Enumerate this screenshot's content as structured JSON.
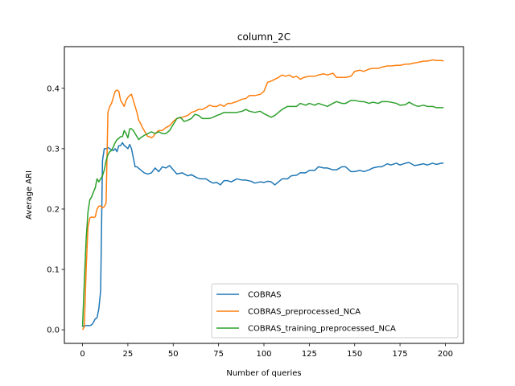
{
  "chart_data": {
    "type": "line",
    "title": "column_2C",
    "xlabel": "Number of queries",
    "ylabel": "Average ARI",
    "xlim": [
      -10,
      210
    ],
    "ylim": [
      -0.0225,
      0.469
    ],
    "xticks": [
      0,
      25,
      50,
      75,
      100,
      125,
      150,
      175,
      200
    ],
    "yticks": [
      0.0,
      0.1,
      0.2,
      0.3,
      0.4
    ],
    "ytick_labels": [
      "0.0",
      "0.1",
      "0.2",
      "0.3",
      "0.4"
    ],
    "legend_position": "lower right",
    "grid": false,
    "series": [
      {
        "name": "COBRAS",
        "color": "#1f77b4",
        "points": [
          [
            0,
            0.005
          ],
          [
            1,
            0.007
          ],
          [
            2,
            0.007
          ],
          [
            3,
            0.007
          ],
          [
            4,
            0.007
          ],
          [
            5,
            0.008
          ],
          [
            6,
            0.012
          ],
          [
            7,
            0.018
          ],
          [
            8,
            0.02
          ],
          [
            9,
            0.035
          ],
          [
            10,
            0.065
          ],
          [
            11,
            0.28
          ],
          [
            12,
            0.3
          ],
          [
            13,
            0.3
          ],
          [
            14,
            0.302
          ],
          [
            15,
            0.3
          ],
          [
            16,
            0.298
          ],
          [
            17,
            0.297
          ],
          [
            18,
            0.3
          ],
          [
            19,
            0.295
          ],
          [
            20,
            0.305
          ],
          [
            21,
            0.305
          ],
          [
            22,
            0.31
          ],
          [
            23,
            0.305
          ],
          [
            24,
            0.303
          ],
          [
            25,
            0.3
          ],
          [
            26,
            0.307
          ],
          [
            27,
            0.3
          ],
          [
            28,
            0.285
          ],
          [
            29,
            0.27
          ],
          [
            30,
            0.27
          ],
          [
            32,
            0.265
          ],
          [
            34,
            0.26
          ],
          [
            36,
            0.258
          ],
          [
            38,
            0.26
          ],
          [
            40,
            0.268
          ],
          [
            42,
            0.262
          ],
          [
            44,
            0.27
          ],
          [
            46,
            0.268
          ],
          [
            48,
            0.272
          ],
          [
            50,
            0.265
          ],
          [
            52,
            0.258
          ],
          [
            55,
            0.26
          ],
          [
            58,
            0.255
          ],
          [
            60,
            0.257
          ],
          [
            63,
            0.252
          ],
          [
            65,
            0.25
          ],
          [
            68,
            0.25
          ],
          [
            70,
            0.246
          ],
          [
            72,
            0.243
          ],
          [
            74,
            0.244
          ],
          [
            76,
            0.24
          ],
          [
            78,
            0.247
          ],
          [
            80,
            0.247
          ],
          [
            82,
            0.245
          ],
          [
            85,
            0.25
          ],
          [
            88,
            0.248
          ],
          [
            90,
            0.248
          ],
          [
            93,
            0.246
          ],
          [
            95,
            0.243
          ],
          [
            98,
            0.245
          ],
          [
            100,
            0.244
          ],
          [
            102,
            0.246
          ],
          [
            104,
            0.245
          ],
          [
            106,
            0.24
          ],
          [
            108,
            0.245
          ],
          [
            110,
            0.25
          ],
          [
            113,
            0.25
          ],
          [
            115,
            0.255
          ],
          [
            118,
            0.256
          ],
          [
            120,
            0.26
          ],
          [
            123,
            0.26
          ],
          [
            125,
            0.264
          ],
          [
            128,
            0.264
          ],
          [
            130,
            0.27
          ],
          [
            133,
            0.268
          ],
          [
            135,
            0.268
          ],
          [
            138,
            0.265
          ],
          [
            140,
            0.265
          ],
          [
            143,
            0.27
          ],
          [
            145,
            0.27
          ],
          [
            148,
            0.262
          ],
          [
            150,
            0.262
          ],
          [
            153,
            0.264
          ],
          [
            155,
            0.262
          ],
          [
            158,
            0.265
          ],
          [
            160,
            0.268
          ],
          [
            163,
            0.27
          ],
          [
            165,
            0.27
          ],
          [
            168,
            0.275
          ],
          [
            170,
            0.273
          ],
          [
            173,
            0.276
          ],
          [
            175,
            0.273
          ],
          [
            178,
            0.276
          ],
          [
            180,
            0.277
          ],
          [
            183,
            0.272
          ],
          [
            185,
            0.273
          ],
          [
            188,
            0.275
          ],
          [
            190,
            0.273
          ],
          [
            193,
            0.276
          ],
          [
            195,
            0.274
          ],
          [
            198,
            0.276
          ],
          [
            199,
            0.276
          ]
        ]
      },
      {
        "name": "COBRAS_preprocessed_NCA",
        "color": "#ff7f0e",
        "points": [
          [
            0,
            0.0
          ],
          [
            1,
            0.005
          ],
          [
            2,
            0.1
          ],
          [
            3,
            0.17
          ],
          [
            4,
            0.185
          ],
          [
            5,
            0.187
          ],
          [
            6,
            0.186
          ],
          [
            7,
            0.187
          ],
          [
            8,
            0.2
          ],
          [
            9,
            0.205
          ],
          [
            10,
            0.205
          ],
          [
            11,
            0.202
          ],
          [
            12,
            0.204
          ],
          [
            13,
            0.21
          ],
          [
            14,
            0.36
          ],
          [
            15,
            0.37
          ],
          [
            16,
            0.375
          ],
          [
            17,
            0.385
          ],
          [
            18,
            0.395
          ],
          [
            19,
            0.397
          ],
          [
            20,
            0.395
          ],
          [
            21,
            0.38
          ],
          [
            22,
            0.375
          ],
          [
            23,
            0.37
          ],
          [
            24,
            0.38
          ],
          [
            25,
            0.385
          ],
          [
            26,
            0.388
          ],
          [
            27,
            0.39
          ],
          [
            28,
            0.38
          ],
          [
            29,
            0.37
          ],
          [
            30,
            0.36
          ],
          [
            31,
            0.347
          ],
          [
            32,
            0.342
          ],
          [
            33,
            0.335
          ],
          [
            34,
            0.33
          ],
          [
            35,
            0.325
          ],
          [
            36,
            0.32
          ],
          [
            37,
            0.32
          ],
          [
            38,
            0.318
          ],
          [
            39,
            0.32
          ],
          [
            40,
            0.325
          ],
          [
            42,
            0.33
          ],
          [
            44,
            0.33
          ],
          [
            46,
            0.335
          ],
          [
            48,
            0.338
          ],
          [
            50,
            0.345
          ],
          [
            52,
            0.35
          ],
          [
            55,
            0.352
          ],
          [
            58,
            0.355
          ],
          [
            60,
            0.36
          ],
          [
            62,
            0.362
          ],
          [
            64,
            0.365
          ],
          [
            66,
            0.365
          ],
          [
            68,
            0.368
          ],
          [
            70,
            0.372
          ],
          [
            72,
            0.37
          ],
          [
            74,
            0.37
          ],
          [
            76,
            0.373
          ],
          [
            78,
            0.37
          ],
          [
            80,
            0.375
          ],
          [
            82,
            0.375
          ],
          [
            85,
            0.378
          ],
          [
            88,
            0.382
          ],
          [
            90,
            0.383
          ],
          [
            92,
            0.388
          ],
          [
            95,
            0.388
          ],
          [
            98,
            0.39
          ],
          [
            100,
            0.395
          ],
          [
            102,
            0.41
          ],
          [
            104,
            0.412
          ],
          [
            106,
            0.415
          ],
          [
            108,
            0.418
          ],
          [
            110,
            0.422
          ],
          [
            112,
            0.42
          ],
          [
            114,
            0.422
          ],
          [
            116,
            0.418
          ],
          [
            118,
            0.42
          ],
          [
            120,
            0.415
          ],
          [
            122,
            0.418
          ],
          [
            125,
            0.42
          ],
          [
            128,
            0.42
          ],
          [
            130,
            0.422
          ],
          [
            133,
            0.424
          ],
          [
            135,
            0.422
          ],
          [
            138,
            0.425
          ],
          [
            140,
            0.418
          ],
          [
            142,
            0.418
          ],
          [
            145,
            0.418
          ],
          [
            148,
            0.42
          ],
          [
            150,
            0.428
          ],
          [
            153,
            0.43
          ],
          [
            155,
            0.428
          ],
          [
            158,
            0.432
          ],
          [
            160,
            0.433
          ],
          [
            163,
            0.433
          ],
          [
            165,
            0.435
          ],
          [
            168,
            0.437
          ],
          [
            170,
            0.437
          ],
          [
            173,
            0.438
          ],
          [
            175,
            0.438
          ],
          [
            178,
            0.44
          ],
          [
            180,
            0.44
          ],
          [
            183,
            0.442
          ],
          [
            185,
            0.443
          ],
          [
            188,
            0.445
          ],
          [
            190,
            0.445
          ],
          [
            193,
            0.447
          ],
          [
            195,
            0.446
          ],
          [
            198,
            0.446
          ],
          [
            199,
            0.445
          ]
        ]
      },
      {
        "name": "COBRAS_training_preprocessed_NCA",
        "color": "#2ca02c",
        "points": [
          [
            0,
            0.005
          ],
          [
            1,
            0.08
          ],
          [
            2,
            0.15
          ],
          [
            3,
            0.195
          ],
          [
            4,
            0.215
          ],
          [
            5,
            0.22
          ],
          [
            6,
            0.228
          ],
          [
            7,
            0.235
          ],
          [
            8,
            0.25
          ],
          [
            9,
            0.245
          ],
          [
            10,
            0.25
          ],
          [
            11,
            0.255
          ],
          [
            12,
            0.265
          ],
          [
            13,
            0.28
          ],
          [
            14,
            0.29
          ],
          [
            15,
            0.295
          ],
          [
            16,
            0.297
          ],
          [
            17,
            0.303
          ],
          [
            18,
            0.31
          ],
          [
            19,
            0.315
          ],
          [
            20,
            0.317
          ],
          [
            21,
            0.32
          ],
          [
            22,
            0.32
          ],
          [
            23,
            0.33
          ],
          [
            24,
            0.325
          ],
          [
            25,
            0.318
          ],
          [
            26,
            0.333
          ],
          [
            27,
            0.333
          ],
          [
            28,
            0.33
          ],
          [
            29,
            0.325
          ],
          [
            30,
            0.32
          ],
          [
            31,
            0.315
          ],
          [
            32,
            0.318
          ],
          [
            33,
            0.32
          ],
          [
            34,
            0.322
          ],
          [
            36,
            0.325
          ],
          [
            38,
            0.328
          ],
          [
            40,
            0.325
          ],
          [
            42,
            0.328
          ],
          [
            44,
            0.325
          ],
          [
            46,
            0.325
          ],
          [
            48,
            0.33
          ],
          [
            50,
            0.34
          ],
          [
            52,
            0.35
          ],
          [
            54,
            0.352
          ],
          [
            56,
            0.345
          ],
          [
            58,
            0.347
          ],
          [
            60,
            0.35
          ],
          [
            62,
            0.357
          ],
          [
            64,
            0.355
          ],
          [
            66,
            0.35
          ],
          [
            68,
            0.35
          ],
          [
            70,
            0.35
          ],
          [
            72,
            0.352
          ],
          [
            74,
            0.355
          ],
          [
            76,
            0.357
          ],
          [
            78,
            0.36
          ],
          [
            80,
            0.36
          ],
          [
            82,
            0.36
          ],
          [
            85,
            0.36
          ],
          [
            88,
            0.362
          ],
          [
            90,
            0.365
          ],
          [
            92,
            0.362
          ],
          [
            95,
            0.36
          ],
          [
            98,
            0.362
          ],
          [
            100,
            0.358
          ],
          [
            102,
            0.355
          ],
          [
            104,
            0.352
          ],
          [
            106,
            0.355
          ],
          [
            108,
            0.36
          ],
          [
            110,
            0.365
          ],
          [
            113,
            0.37
          ],
          [
            115,
            0.37
          ],
          [
            118,
            0.37
          ],
          [
            120,
            0.375
          ],
          [
            123,
            0.372
          ],
          [
            125,
            0.375
          ],
          [
            128,
            0.372
          ],
          [
            130,
            0.375
          ],
          [
            133,
            0.372
          ],
          [
            135,
            0.37
          ],
          [
            138,
            0.375
          ],
          [
            140,
            0.378
          ],
          [
            143,
            0.375
          ],
          [
            145,
            0.375
          ],
          [
            148,
            0.38
          ],
          [
            150,
            0.38
          ],
          [
            153,
            0.378
          ],
          [
            155,
            0.378
          ],
          [
            158,
            0.375
          ],
          [
            160,
            0.377
          ],
          [
            163,
            0.375
          ],
          [
            165,
            0.378
          ],
          [
            168,
            0.378
          ],
          [
            170,
            0.377
          ],
          [
            173,
            0.375
          ],
          [
            175,
            0.372
          ],
          [
            178,
            0.373
          ],
          [
            180,
            0.377
          ],
          [
            183,
            0.372
          ],
          [
            185,
            0.37
          ],
          [
            188,
            0.372
          ],
          [
            190,
            0.37
          ],
          [
            193,
            0.37
          ],
          [
            195,
            0.368
          ],
          [
            198,
            0.368
          ],
          [
            199,
            0.368
          ]
        ]
      }
    ]
  }
}
